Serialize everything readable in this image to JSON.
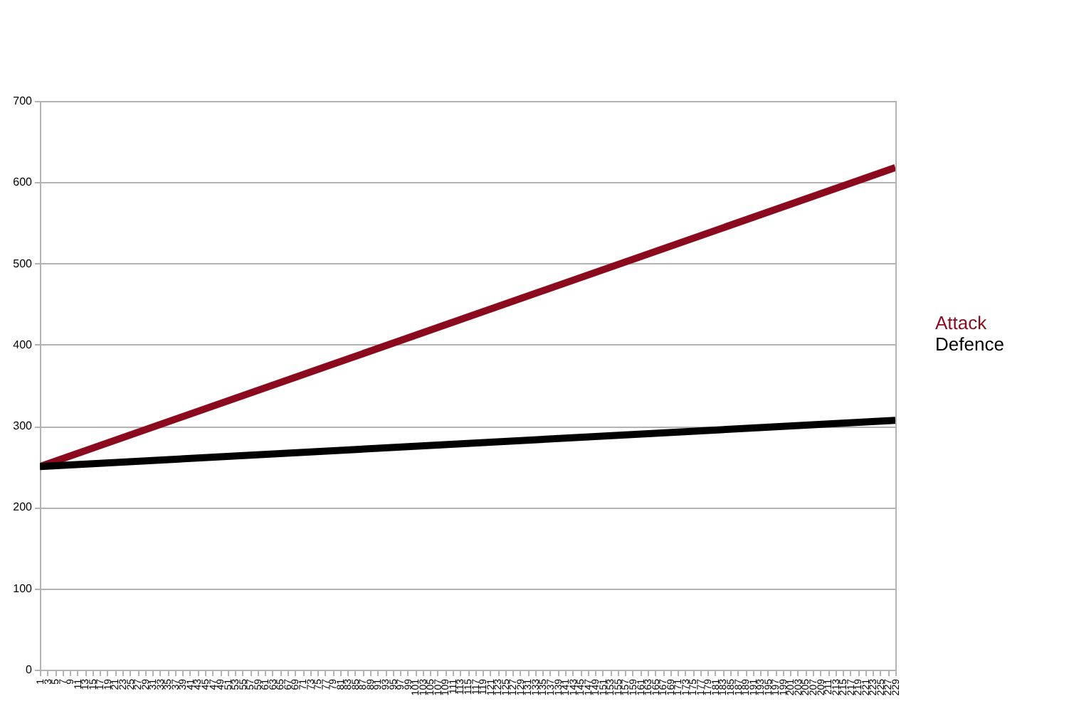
{
  "chart_data": {
    "type": "line",
    "x": [
      1,
      229
    ],
    "series": [
      {
        "name": "Attack",
        "color": "#8b0a1e",
        "values": [
          250,
          618
        ]
      },
      {
        "name": "Defence",
        "color": "#000000",
        "values": [
          250,
          307
        ]
      }
    ],
    "xlim": [
      1,
      229
    ],
    "xticks": [
      1,
      3,
      5,
      7,
      9,
      11,
      13,
      15,
      17,
      19,
      21,
      23,
      25,
      27,
      29,
      31,
      33,
      35,
      37,
      39,
      41,
      43,
      45,
      47,
      49,
      51,
      53,
      55,
      57,
      59,
      61,
      63,
      65,
      67,
      69,
      71,
      73,
      75,
      77,
      79,
      81,
      83,
      85,
      87,
      89,
      91,
      93,
      95,
      97,
      99,
      101,
      103,
      105,
      107,
      109,
      111,
      113,
      115,
      117,
      119,
      121,
      123,
      125,
      127,
      129,
      131,
      133,
      135,
      137,
      139,
      141,
      143,
      145,
      147,
      149,
      151,
      153,
      155,
      157,
      159,
      161,
      163,
      165,
      167,
      169,
      171,
      173,
      175,
      177,
      179,
      181,
      183,
      185,
      187,
      189,
      191,
      193,
      195,
      197,
      199,
      201,
      203,
      205,
      207,
      209,
      211,
      213,
      215,
      217,
      219,
      221,
      223,
      225,
      227,
      229
    ],
    "ylim": [
      0,
      700
    ],
    "yticks": [
      0,
      100,
      200,
      300,
      400,
      500,
      600,
      700
    ],
    "grid": "y",
    "legend": "right",
    "marker": "none",
    "line_style": "solid"
  }
}
